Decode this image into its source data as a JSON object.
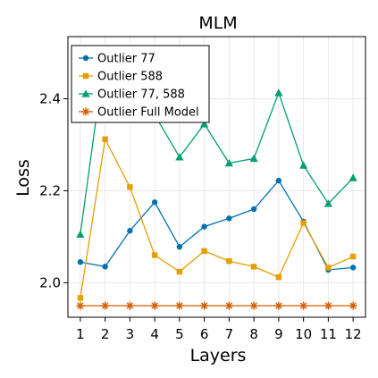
{
  "chart_data": {
    "type": "line",
    "title": "MLM",
    "xlabel": "Layers",
    "ylabel": "Loss",
    "x": [
      1,
      2,
      3,
      4,
      5,
      6,
      7,
      8,
      9,
      10,
      11,
      12
    ],
    "xlim": [
      0.5,
      12.5
    ],
    "ylim": [
      1.925,
      2.535
    ],
    "yticks": [
      2.0,
      2.2,
      2.4
    ],
    "ytick_labels": [
      "2.0",
      "2.2",
      "2.4"
    ],
    "xtick_labels": [
      "1",
      "2",
      "3",
      "4",
      "5",
      "6",
      "7",
      "8",
      "9",
      "10",
      "11",
      "12"
    ],
    "grid": true,
    "legend_position": "top-left",
    "series": [
      {
        "name": "Outlier 77",
        "color": "#0072b2",
        "marker": "circle",
        "values": [
          2.045,
          2.035,
          2.113,
          2.175,
          2.078,
          2.122,
          2.14,
          2.16,
          2.222,
          2.133,
          2.028,
          2.033
        ]
      },
      {
        "name": "Outlier 588",
        "color": "#e69f00",
        "marker": "square",
        "values": [
          1.967,
          2.312,
          2.208,
          2.06,
          2.024,
          2.069,
          2.047,
          2.035,
          2.012,
          2.13,
          2.033,
          2.057
        ]
      },
      {
        "name": "Outlier 77, 588",
        "color": "#009e73",
        "marker": "triangle",
        "values": [
          2.105,
          2.5,
          2.49,
          2.365,
          2.273,
          2.345,
          2.26,
          2.27,
          2.413,
          2.255,
          2.172,
          2.228
        ]
      },
      {
        "name": "Outlier Full Model",
        "color": "#d55e00",
        "marker": "star",
        "values": [
          1.95,
          1.95,
          1.95,
          1.95,
          1.95,
          1.95,
          1.95,
          1.95,
          1.95,
          1.95,
          1.95,
          1.95
        ]
      }
    ]
  }
}
